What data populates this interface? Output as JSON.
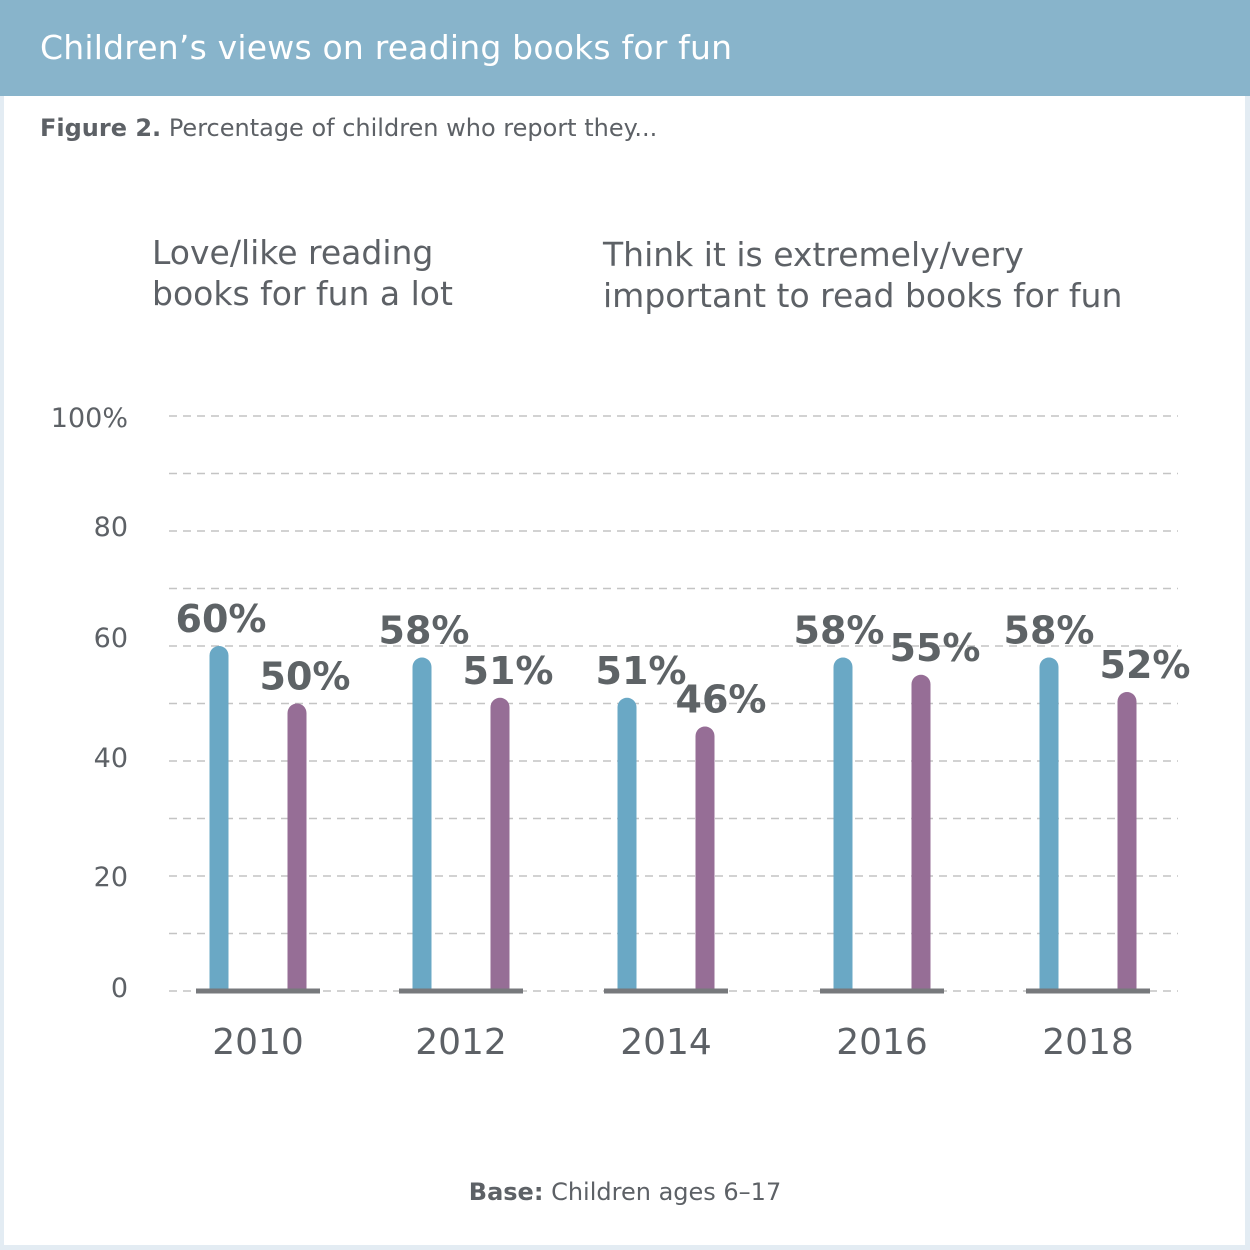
{
  "header": {
    "title": "Children’s views on reading books for fun"
  },
  "figure": {
    "label": "Figure 2.",
    "caption": "Percentage of children who report they..."
  },
  "legend": [
    {
      "line1": "Love/like reading",
      "line2": "books for fun a lot",
      "color": "#6aa8c5"
    },
    {
      "line1": "Think it is extremely/very",
      "line2": "important to read books for fun",
      "color": "#966e96"
    }
  ],
  "footer": {
    "label": "Base:",
    "text": "Children ages 6–17"
  },
  "colors": {
    "text": "#5d6166",
    "grid": "#c4c4c4",
    "baseline": "#77797c"
  },
  "chart_data": {
    "type": "bar",
    "title": "Children’s views on reading books for fun",
    "subtitle": "Figure 2. Percentage of children who report they...",
    "categories": [
      "2010",
      "2012",
      "2014",
      "2016",
      "2018"
    ],
    "series": [
      {
        "name": "Love/like reading books for fun a lot",
        "values": [
          60,
          58,
          51,
          58,
          58
        ],
        "labels": [
          "60%",
          "58%",
          "51%",
          "58%",
          "58%"
        ],
        "color": "#6aa8c5"
      },
      {
        "name": "Think it is extremely/very important to read books for fun",
        "values": [
          50,
          51,
          46,
          55,
          52
        ],
        "labels": [
          "50%",
          "51%",
          "46%",
          "55%",
          "52%"
        ],
        "color": "#966e96"
      }
    ],
    "xlabel": "",
    "ylabel": "",
    "ylim": [
      0,
      100
    ],
    "yticks": [
      0,
      20,
      40,
      60,
      80,
      100
    ],
    "ytick_labels": [
      "0",
      "20",
      "40",
      "60",
      "80",
      "100%"
    ],
    "grid_step": 10,
    "grid": true,
    "gridline_style": "dashed",
    "legend_position": "top",
    "note": "Base: Children ages 6–17"
  }
}
